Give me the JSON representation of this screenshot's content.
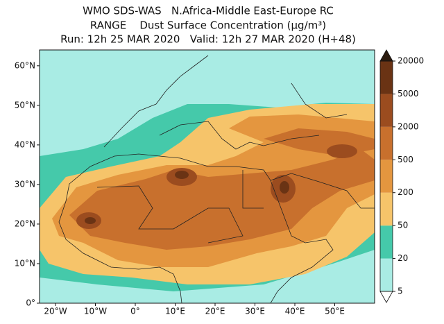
{
  "header": {
    "lines": [
      "WMO SDS-WAS   N.Africa-Middle East-Europe RC",
      "RANGE    Dust Surface Concentration (µg/m³)",
      "Run: 12h 25 MAR 2020   Valid: 12h 27 MAR 2020 (H+48)"
    ]
  },
  "map": {
    "xlim": [
      -24,
      60
    ],
    "ylim": [
      0,
      64
    ],
    "xticks": [
      {
        "value": -20,
        "label": "20°W"
      },
      {
        "value": -10,
        "label": "10°W"
      },
      {
        "value": 0,
        "label": "0°"
      },
      {
        "value": 10,
        "label": "10°E"
      },
      {
        "value": 20,
        "label": "20°E"
      },
      {
        "value": 30,
        "label": "30°E"
      },
      {
        "value": 40,
        "label": "40°E"
      },
      {
        "value": 50,
        "label": "50°E"
      }
    ],
    "yticks": [
      {
        "value": 0,
        "label": "0°"
      },
      {
        "value": 10,
        "label": "10°N"
      },
      {
        "value": 20,
        "label": "20°N"
      },
      {
        "value": 30,
        "label": "30°N"
      },
      {
        "value": 40,
        "label": "40°N"
      },
      {
        "value": 50,
        "label": "50°N"
      },
      {
        "value": 60,
        "label": "60°N"
      }
    ]
  },
  "colorbar": {
    "levels": [
      5,
      20,
      50,
      200,
      500,
      2000,
      5000,
      20000
    ],
    "colors": [
      "#a9ece4",
      "#45c9aa",
      "#f6c46a",
      "#e4963f",
      "#c8702d",
      "#9b4c1f",
      "#6a3314"
    ],
    "under_color": "#ffffff",
    "over_color": "#2b1b0f"
  }
}
